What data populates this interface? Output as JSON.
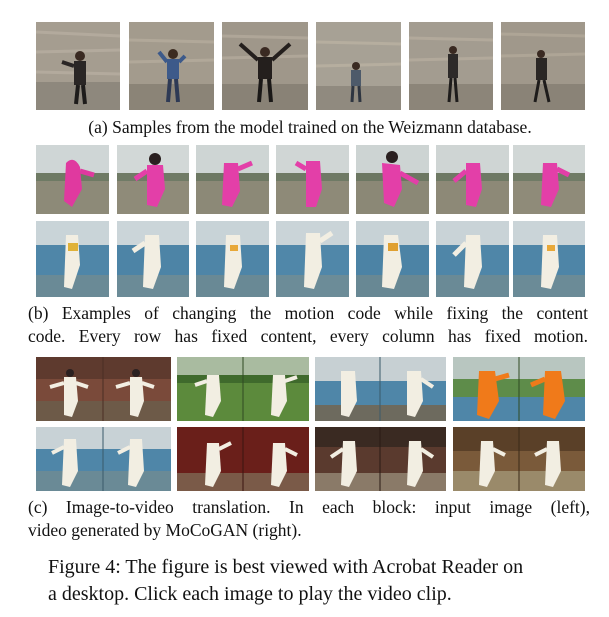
{
  "figure": {
    "weizmann_caption": "(a) Samples from the model trained on the Weizmann database.",
    "motion_caption_line1": "(b) Examples of changing the motion code while fixing the content",
    "motion_caption_line2": "code. Every row has fixed content, every column has fixed motion.",
    "translation_caption_line1": "(c) Image-to-video translation. In each block: input image (left),",
    "translation_caption_line2": "video generated by MoCoGAN (right).",
    "main_caption_line1": "Figure 4: The figure is best viewed with Acrobat Reader on",
    "main_caption_line2": "a desktop. Click each image to play the video clip."
  },
  "palette": {
    "wall": "#a29a8e",
    "wall_dark": "#7d776e",
    "pink_suit": "#e33fa8",
    "sky_light": "#cfd7da",
    "ground": "#8f8c78",
    "sea": "#4f86a8",
    "white_suit": "#f2eee2",
    "red_wall": "#6a1f1a",
    "green_field": "#5c8a3c",
    "orange_suit": "#f07a1a"
  }
}
